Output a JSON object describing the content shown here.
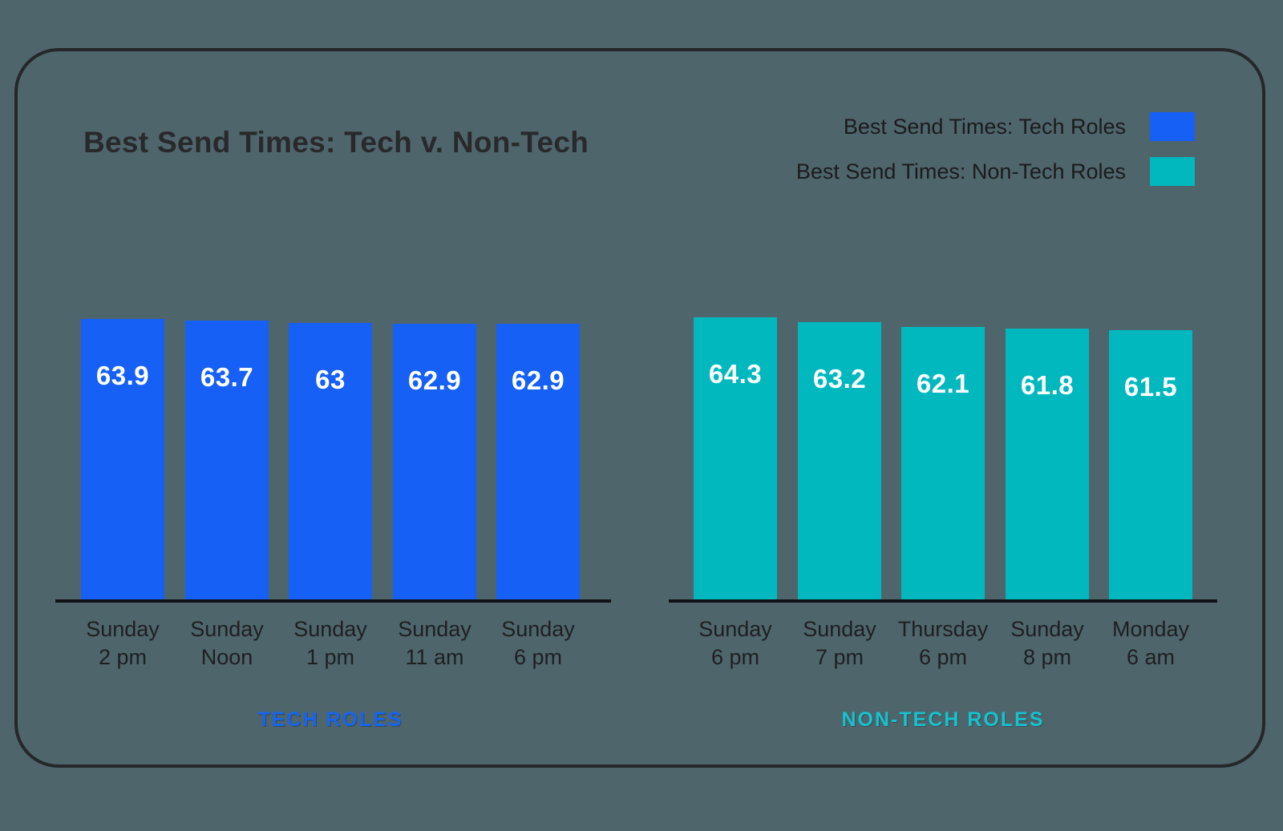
{
  "title": "Best Send Times: Tech v. Non-Tech",
  "legend": {
    "items": [
      {
        "label": "Best Send Times: Tech Roles",
        "color": "#1660F5"
      },
      {
        "label": "Best Send Times: Non-Tech Roles",
        "color": "#00B8BE"
      }
    ]
  },
  "chart_data": {
    "type": "bar",
    "title": "Best Send Times: Tech v. Non-Tech",
    "ylim": [
      0,
      68
    ],
    "grid": false,
    "legend_position": "top-right",
    "groups": [
      {
        "caption": "TECH ROLES",
        "caption_color": "#1565F2",
        "series_name": "Best Send Times: Tech Roles",
        "bar_color": "#1660F5",
        "categories": [
          [
            "Sunday",
            "2 pm"
          ],
          [
            "Sunday",
            "Noon"
          ],
          [
            "Sunday",
            "1 pm"
          ],
          [
            "Sunday",
            "11 am"
          ],
          [
            "Sunday",
            "6 pm"
          ]
        ],
        "values": [
          63.9,
          63.7,
          63,
          62.9,
          62.9
        ],
        "value_labels": [
          "63.9",
          "63.7",
          "63",
          "62.9",
          "62.9"
        ]
      },
      {
        "caption": "NON-TECH ROLES",
        "caption_color": "#16C2CE",
        "series_name": "Best Send Times: Non-Tech Roles",
        "bar_color": "#00B8BE",
        "categories": [
          [
            "Sunday",
            "6 pm"
          ],
          [
            "Sunday",
            "7 pm"
          ],
          [
            "Thursday",
            "6 pm"
          ],
          [
            "Sunday",
            "8 pm"
          ],
          [
            "Monday",
            "6 am"
          ]
        ],
        "values": [
          64.3,
          63.2,
          62.1,
          61.8,
          61.5
        ],
        "value_labels": [
          "64.3",
          "63.2",
          "62.1",
          "61.8",
          "61.5"
        ]
      }
    ]
  },
  "colors": {
    "background": "#4E656C",
    "frame_border": "#26262B",
    "axis": "#111215",
    "title_text": "#29292B",
    "legend_text": "#1B1B1D",
    "tick_text": "#1E1F21",
    "value_text": "#FFFFFF"
  }
}
